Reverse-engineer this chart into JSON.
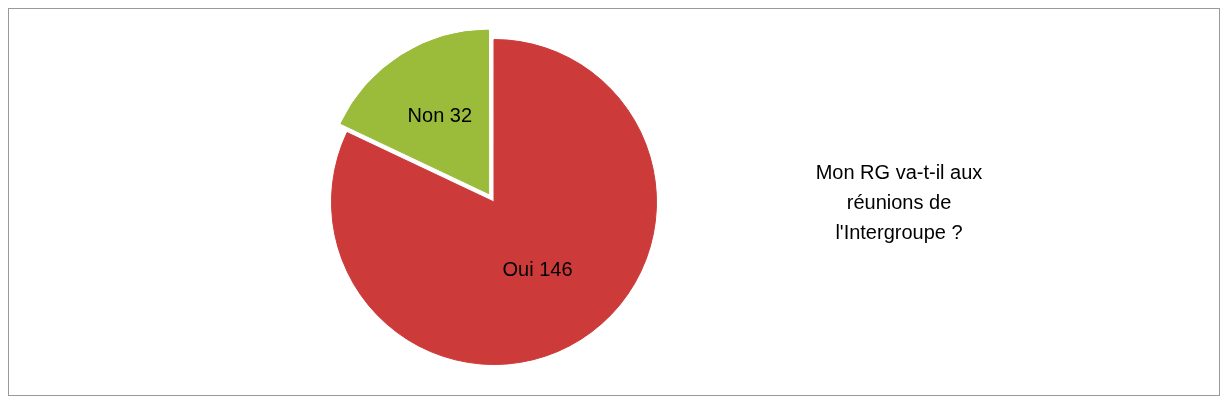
{
  "chart_data": {
    "type": "pie",
    "title": "Mon RG va-t-il aux réunions de l'Intergroupe ?",
    "categories": [
      "Oui",
      "Non"
    ],
    "values": [
      146,
      32
    ],
    "colors": [
      "#cc3b3a",
      "#9bbb3b"
    ],
    "data_labels": true,
    "legend": false
  }
}
